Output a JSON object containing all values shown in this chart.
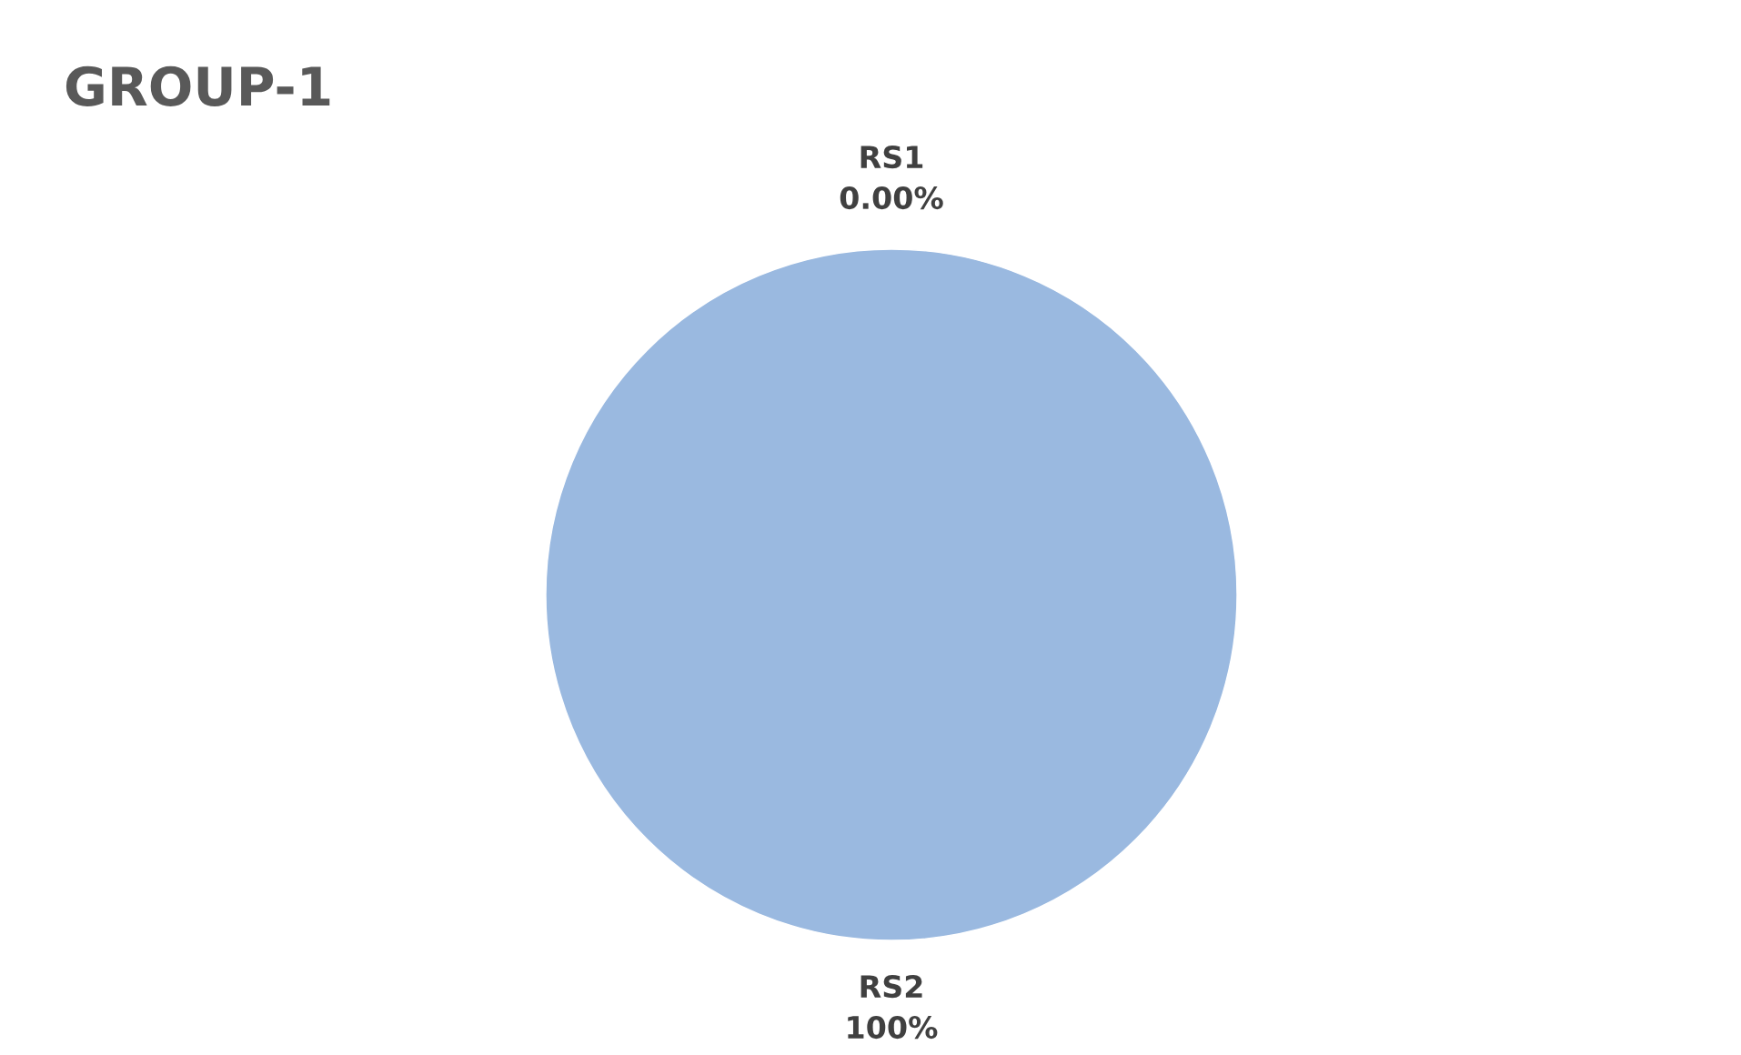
{
  "chart_data": {
    "type": "pie",
    "title": "GROUP-1",
    "categories": [
      "RS1",
      "RS2"
    ],
    "values": [
      0,
      100
    ],
    "value_labels": [
      "0.00%",
      "100%"
    ],
    "colors": [
      "#4472c4",
      "#9ab9e0"
    ],
    "legend": false
  }
}
